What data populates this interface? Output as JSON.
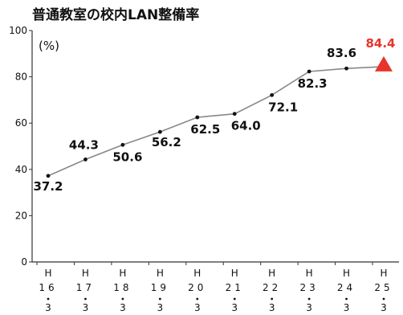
{
  "chart_data": {
    "type": "line",
    "title": "普通教室の校内LAN整備率",
    "unit_label": "(%)",
    "ylim": [
      0,
      100
    ],
    "yticks": [
      0,
      20,
      40,
      60,
      80,
      100
    ],
    "grid": false,
    "categories": [
      {
        "era": "H",
        "year": "16",
        "month": "3"
      },
      {
        "era": "H",
        "year": "17",
        "month": "3"
      },
      {
        "era": "H",
        "year": "18",
        "month": "3"
      },
      {
        "era": "H",
        "year": "19",
        "month": "3"
      },
      {
        "era": "H",
        "year": "20",
        "month": "3"
      },
      {
        "era": "H",
        "year": "21",
        "month": "3"
      },
      {
        "era": "H",
        "year": "22",
        "month": "3"
      },
      {
        "era": "H",
        "year": "23",
        "month": "3"
      },
      {
        "era": "H",
        "year": "24",
        "month": "3"
      },
      {
        "era": "H",
        "year": "25",
        "month": "3"
      }
    ],
    "series": [
      {
        "values": [
          37.2,
          44.3,
          50.6,
          56.2,
          62.5,
          64.0,
          72.1,
          82.3,
          83.6,
          84.4
        ],
        "labels": [
          "37.2",
          "44.3",
          "50.6",
          "56.2",
          "62.5",
          "64.0",
          "72.1",
          "82.3",
          "83.6",
          "84.4"
        ],
        "line_color": "#888888",
        "marker_color": "#111111",
        "last_marker": "triangle",
        "highlight_color": "#e8352b"
      }
    ]
  }
}
